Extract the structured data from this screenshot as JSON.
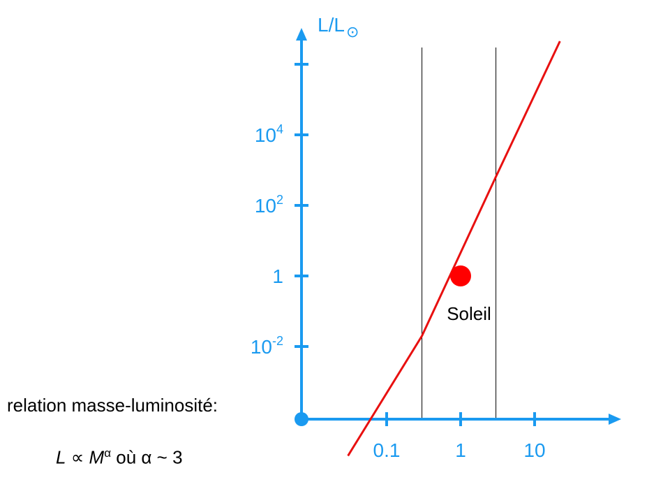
{
  "colors": {
    "axis": "#1a9af0",
    "curve": "#e81010",
    "sun": "#ff0000",
    "guide": "#000000"
  },
  "chart_data": {
    "type": "line",
    "title": "",
    "xlabel": "",
    "ylabel": "L/L",
    "ylabel_symbol": "⊙",
    "xscale": "log",
    "yscale": "log",
    "xlim": [
      0.025,
      40
    ],
    "ylim": [
      1e-05,
      10000000
    ],
    "x_ticks": [
      {
        "value": 0.1,
        "label": "0.1"
      },
      {
        "value": 1,
        "label": "1"
      },
      {
        "value": 10,
        "label": "10"
      }
    ],
    "y_ticks": [
      {
        "value": 0.01,
        "base": "10",
        "exp": "-2"
      },
      {
        "value": 1,
        "base": "1",
        "exp": ""
      },
      {
        "value": 100,
        "base": "10",
        "exp": "2"
      },
      {
        "value": 10000,
        "base": "10",
        "exp": "4"
      },
      {
        "value": 1000000,
        "base": "",
        "exp": ""
      }
    ],
    "vertical_lines": [
      0.3,
      3
    ],
    "series": [
      {
        "values": [
          [
            0.03,
            8e-06
          ],
          [
            0.3,
            0.02
          ],
          [
            3,
            650
          ],
          [
            22,
            4500000
          ]
        ]
      }
    ],
    "highlight_point": {
      "x": 1,
      "y": 1,
      "label": "Soleil"
    }
  },
  "notes": {
    "relation": "relation masse-luminosité:",
    "formula": {
      "L": "L",
      "prop": "∝",
      "M": "M",
      "alpha_sup": "α",
      "ou": "où",
      "alpha": "α",
      "approx": "~",
      "value": "3"
    }
  }
}
